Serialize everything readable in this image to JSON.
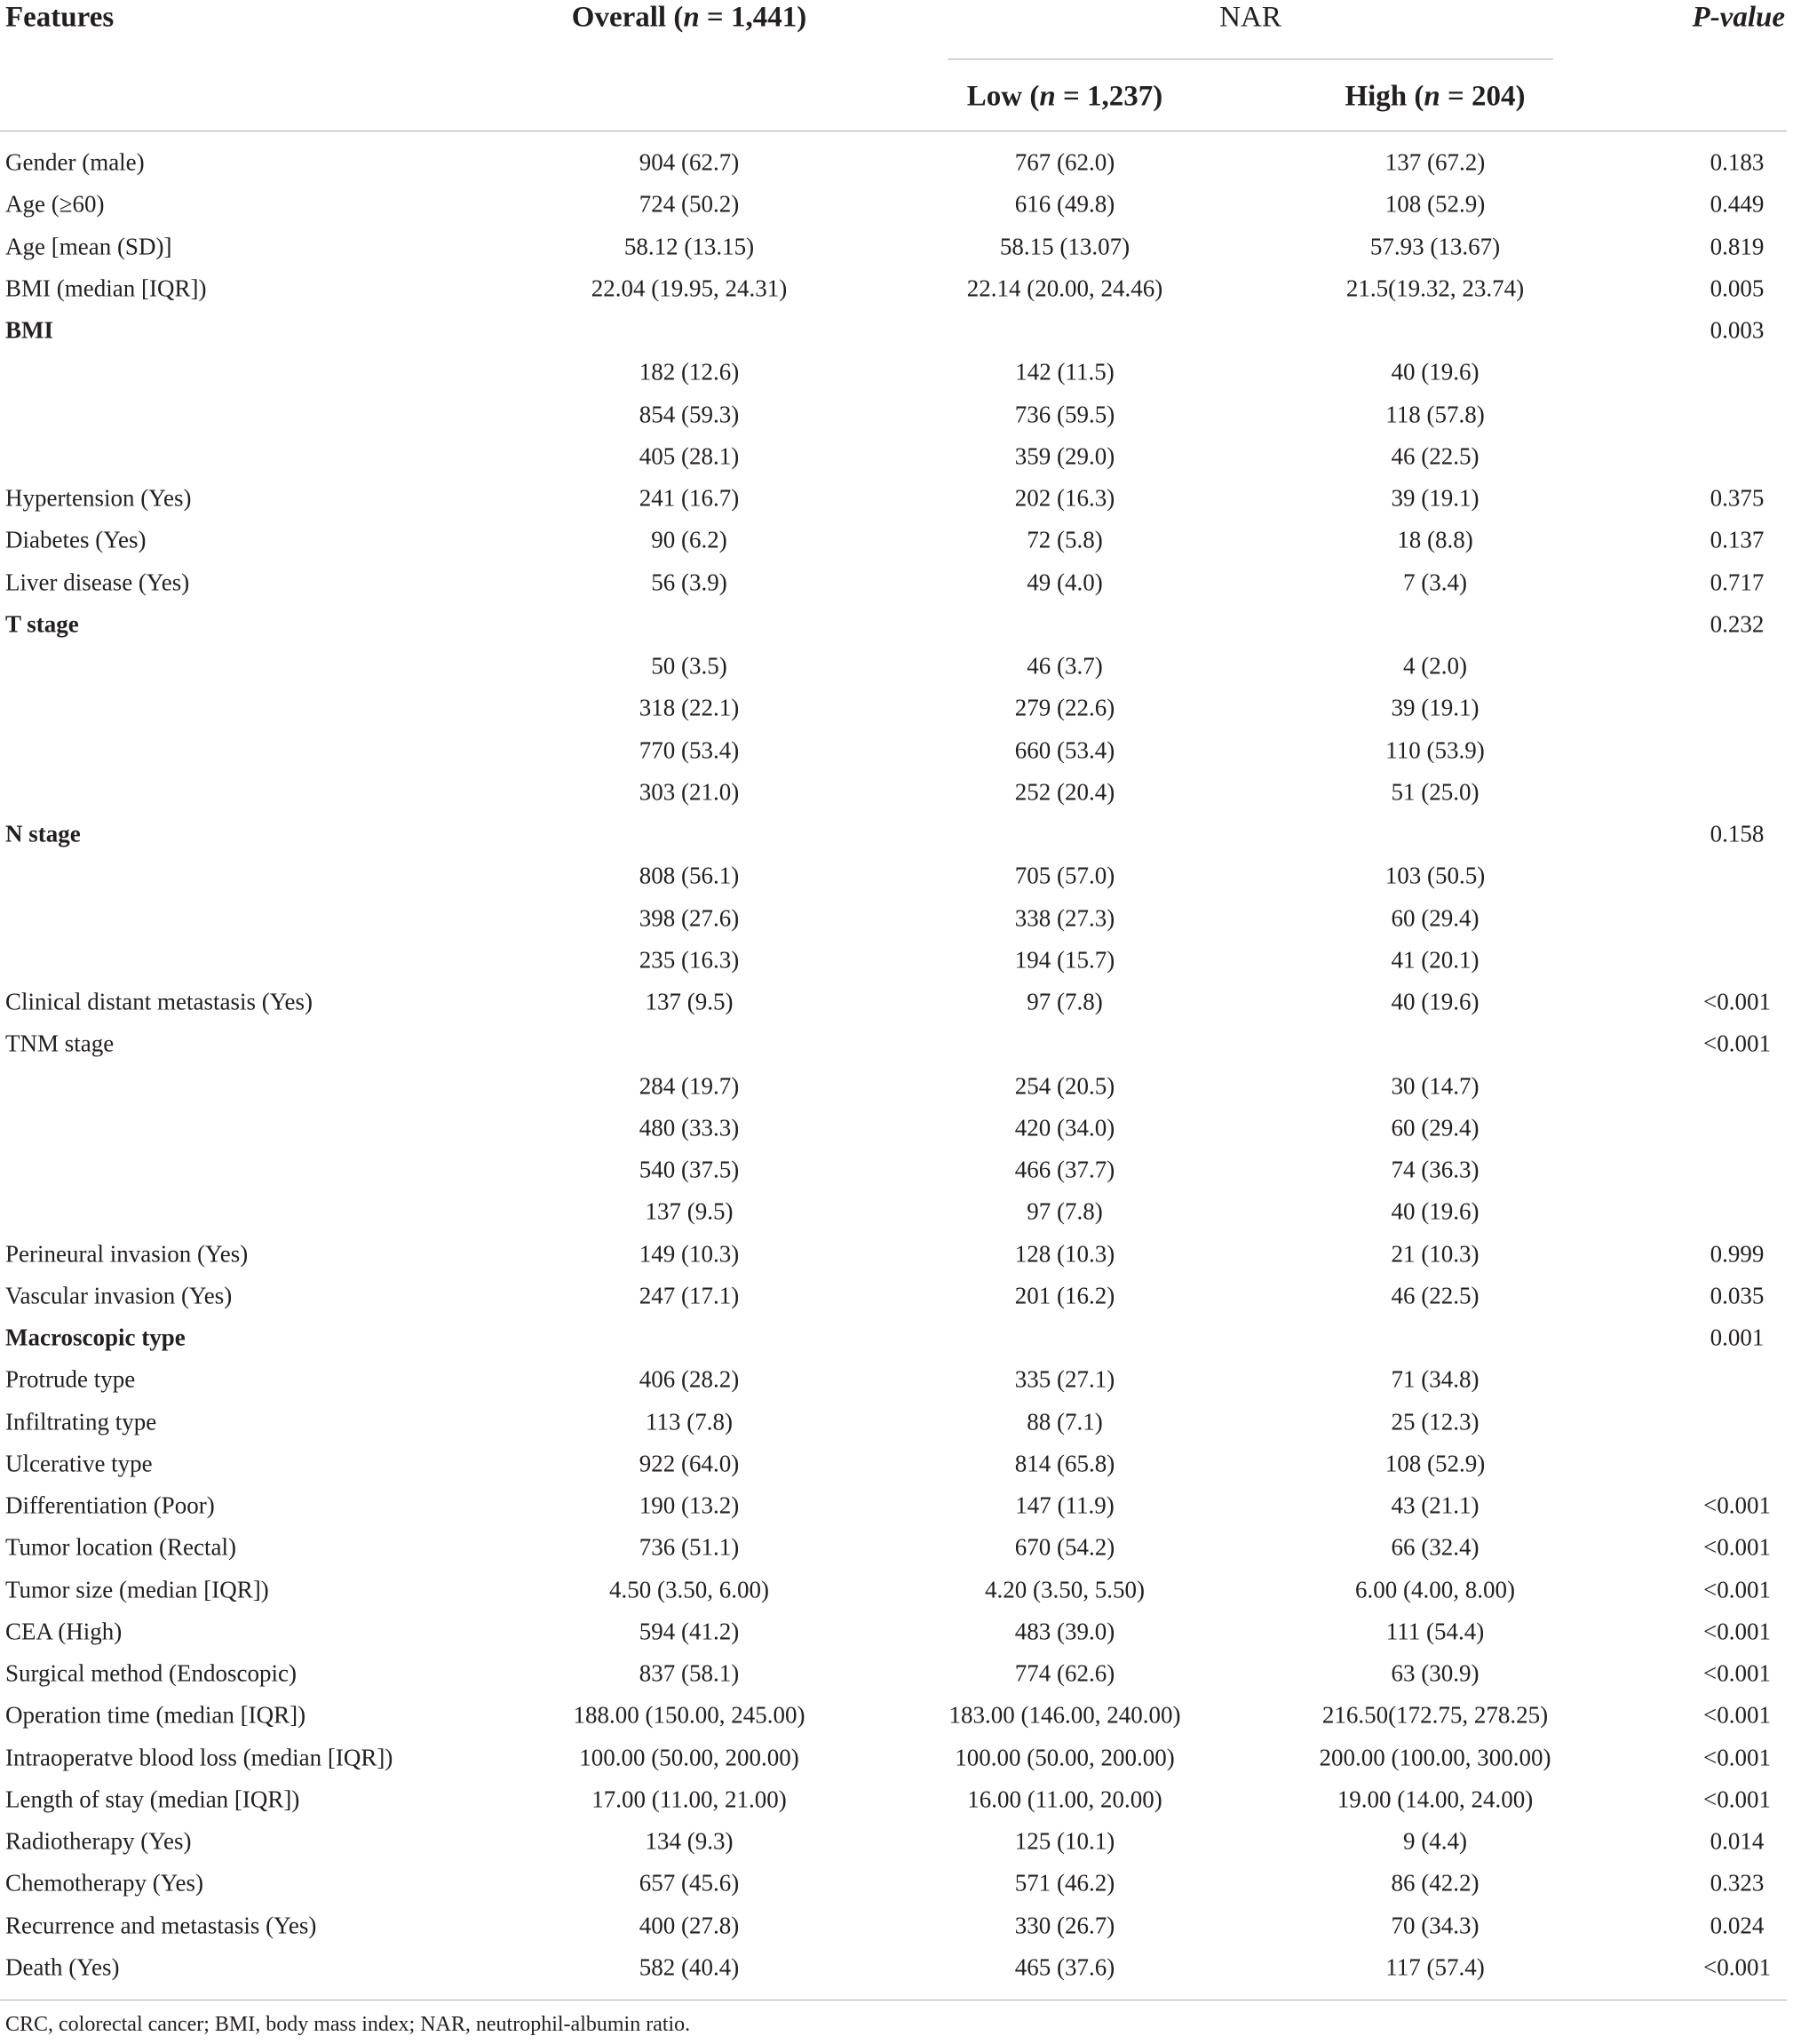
{
  "header": {
    "features": "Features",
    "overall": [
      "Overall (",
      "n",
      " = 1,441)"
    ],
    "nar": "NAR",
    "low": [
      "Low (",
      "n",
      " = 1,237)"
    ],
    "high": [
      "High (",
      "n",
      " = 204)"
    ],
    "p_value": "P-value"
  },
  "table": {
    "rows": [
      {
        "cells": [
          "Gender (male)",
          "904 (62.7)",
          "767 (62.0)",
          "137 (67.2)",
          "0.183"
        ]
      },
      {
        "cells": [
          "Age (≥60)",
          "724 (50.2)",
          "616 (49.8)",
          "108 (52.9)",
          "0.449"
        ]
      },
      {
        "cells": [
          "Age [mean (SD)]",
          "58.12 (13.15)",
          "58.15 (13.07)",
          "57.93 (13.67)",
          "0.819"
        ]
      },
      {
        "cells": [
          "BMI (median [IQR])",
          "22.04 (19.95, 24.31)",
          "22.14 (20.00, 24.46)",
          "21.5(19.32, 23.74)",
          "0.005"
        ]
      },
      {
        "cells": [
          "BMI",
          null,
          null,
          null,
          "0.003"
        ],
        "bold": true
      },
      {
        "cells": [
          null,
          "182 (12.6)",
          "142 (11.5)",
          "40 (19.6)",
          null
        ]
      },
      {
        "cells": [
          null,
          "854 (59.3)",
          "736 (59.5)",
          "118 (57.8)",
          null
        ]
      },
      {
        "cells": [
          null,
          "405 (28.1)",
          "359 (29.0)",
          "46 (22.5)",
          null
        ]
      },
      {
        "cells": [
          "Hypertension (Yes)",
          "241 (16.7)",
          "202 (16.3)",
          "39 (19.1)",
          "0.375"
        ]
      },
      {
        "cells": [
          "Diabetes (Yes)",
          "90 (6.2)",
          "72 (5.8)",
          "18 (8.8)",
          "0.137"
        ]
      },
      {
        "cells": [
          "Liver disease (Yes)",
          "56 (3.9)",
          "49 (4.0)",
          "7 (3.4)",
          "0.717"
        ]
      },
      {
        "cells": [
          "T stage",
          null,
          null,
          null,
          "0.232"
        ],
        "bold": true
      },
      {
        "cells": [
          null,
          "50 (3.5)",
          "46 (3.7)",
          "4 (2.0)",
          null
        ]
      },
      {
        "cells": [
          null,
          "318 (22.1)",
          "279 (22.6)",
          "39 (19.1)",
          null
        ]
      },
      {
        "cells": [
          null,
          "770 (53.4)",
          "660 (53.4)",
          "110 (53.9)",
          null
        ]
      },
      {
        "cells": [
          null,
          "303 (21.0)",
          "252 (20.4)",
          "51 (25.0)",
          null
        ]
      },
      {
        "cells": [
          "N stage",
          null,
          null,
          null,
          "0.158"
        ],
        "bold": true
      },
      {
        "cells": [
          null,
          "808 (56.1)",
          "705 (57.0)",
          "103 (50.5)",
          null
        ]
      },
      {
        "cells": [
          null,
          "398 (27.6)",
          "338 (27.3)",
          "60 (29.4)",
          null
        ]
      },
      {
        "cells": [
          null,
          "235 (16.3)",
          "194 (15.7)",
          "41 (20.1)",
          null
        ]
      },
      {
        "cells": [
          "Clinical distant metastasis (Yes)",
          "137 (9.5)",
          "97 (7.8)",
          "40 (19.6)",
          "<0.001"
        ]
      },
      {
        "cells": [
          "TNM stage",
          null,
          null,
          null,
          "<0.001"
        ]
      },
      {
        "cells": [
          null,
          "284 (19.7)",
          "254 (20.5)",
          "30 (14.7)",
          null
        ]
      },
      {
        "cells": [
          null,
          "480 (33.3)",
          "420 (34.0)",
          "60 (29.4)",
          null
        ]
      },
      {
        "cells": [
          null,
          "540 (37.5)",
          "466 (37.7)",
          "74 (36.3)",
          null
        ]
      },
      {
        "cells": [
          null,
          "137 (9.5)",
          "97 (7.8)",
          "40 (19.6)",
          null
        ]
      },
      {
        "cells": [
          "Perineural invasion (Yes)",
          "149 (10.3)",
          "128 (10.3)",
          "21 (10.3)",
          "0.999"
        ]
      },
      {
        "cells": [
          "Vascular invasion (Yes)",
          "247 (17.1)",
          "201 (16.2)",
          "46 (22.5)",
          "0.035"
        ]
      },
      {
        "cells": [
          "Macroscopic type",
          null,
          null,
          null,
          "0.001"
        ],
        "bold": true
      },
      {
        "cells": [
          "Protrude type",
          "406 (28.2)",
          "335 (27.1)",
          "71 (34.8)",
          null
        ]
      },
      {
        "cells": [
          "Infiltrating type",
          "113 (7.8)",
          "88 (7.1)",
          "25 (12.3)",
          null
        ]
      },
      {
        "cells": [
          "Ulcerative type",
          "922 (64.0)",
          "814 (65.8)",
          "108 (52.9)",
          null
        ]
      },
      {
        "cells": [
          "Differentiation (Poor)",
          "190 (13.2)",
          "147 (11.9)",
          "43 (21.1)",
          "<0.001"
        ]
      },
      {
        "cells": [
          "Tumor location (Rectal)",
          "736 (51.1)",
          "670 (54.2)",
          "66 (32.4)",
          "<0.001"
        ]
      },
      {
        "cells": [
          "Tumor size (median [IQR])",
          "4.50 (3.50, 6.00)",
          "4.20 (3.50, 5.50)",
          "6.00 (4.00, 8.00)",
          "<0.001"
        ]
      },
      {
        "cells": [
          "CEA (High)",
          "594 (41.2)",
          "483 (39.0)",
          "111 (54.4)",
          "<0.001"
        ]
      },
      {
        "cells": [
          "Surgical method (Endoscopic)",
          "837 (58.1)",
          "774 (62.6)",
          "63 (30.9)",
          "<0.001"
        ]
      },
      {
        "cells": [
          "Operation time (median [IQR])",
          "188.00 (150.00, 245.00)",
          "183.00 (146.00, 240.00)",
          "216.50(172.75, 278.25)",
          "<0.001"
        ]
      },
      {
        "cells": [
          "Intraoperatve blood loss (median [IQR])",
          "100.00 (50.00, 200.00)",
          "100.00 (50.00, 200.00)",
          "200.00 (100.00, 300.00)",
          "<0.001"
        ]
      },
      {
        "cells": [
          "Length of stay (median [IQR])",
          "17.00 (11.00, 21.00)",
          "16.00 (11.00, 20.00)",
          "19.00 (14.00, 24.00)",
          "<0.001"
        ]
      },
      {
        "cells": [
          "Radiotherapy (Yes)",
          "134 (9.3)",
          "125 (10.1)",
          "9 (4.4)",
          "0.014"
        ]
      },
      {
        "cells": [
          "Chemotherapy (Yes)",
          "657 (45.6)",
          "571 (46.2)",
          "86 (42.2)",
          "0.323"
        ]
      },
      {
        "cells": [
          "Recurrence and metastasis (Yes)",
          "400 (27.8)",
          "330 (26.7)",
          "70 (34.3)",
          "0.024"
        ]
      },
      {
        "cells": [
          "Death (Yes)",
          "582 (40.4)",
          "465 (37.6)",
          "117 (57.4)",
          "<0.001"
        ]
      }
    ]
  },
  "footnote": "CRC, colorectal cancer; BMI, body mass index; NAR, neutrophil-albumin ratio."
}
